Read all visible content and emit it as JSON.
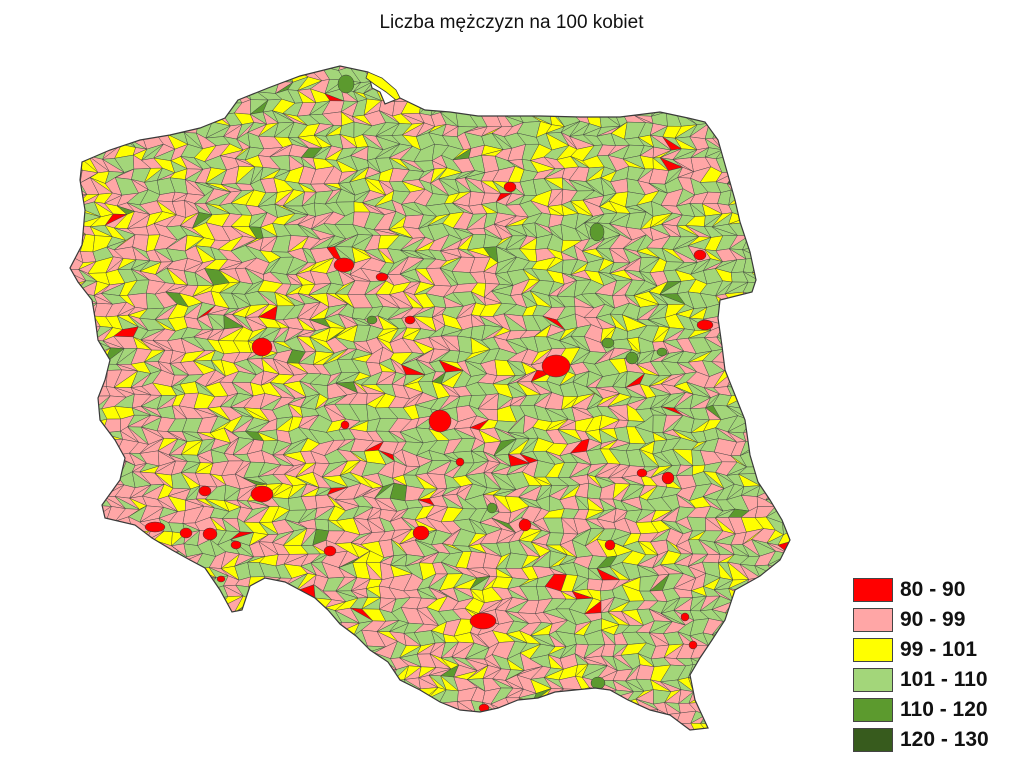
{
  "title": "Liczba mężczyzn na 100 kobiet",
  "legend": [
    {
      "label": "80 - 90",
      "color": "#ff0000",
      "range": [
        80,
        90
      ]
    },
    {
      "label": "90 - 99",
      "color": "#ffa6a6",
      "range": [
        90,
        99
      ]
    },
    {
      "label": "99 - 101",
      "color": "#ffff00",
      "range": [
        99,
        101
      ]
    },
    {
      "label": "101 - 110",
      "color": "#a3d67a",
      "range": [
        101,
        110
      ]
    },
    {
      "label": "110 - 120",
      "color": "#5c9a2e",
      "range": [
        110,
        120
      ]
    },
    {
      "label": "120 - 130",
      "color": "#375b1d",
      "range": [
        120,
        130
      ]
    }
  ],
  "colors": {
    "background": "#ffffff",
    "border": "#3a3a3a",
    "text": "#111111"
  }
}
